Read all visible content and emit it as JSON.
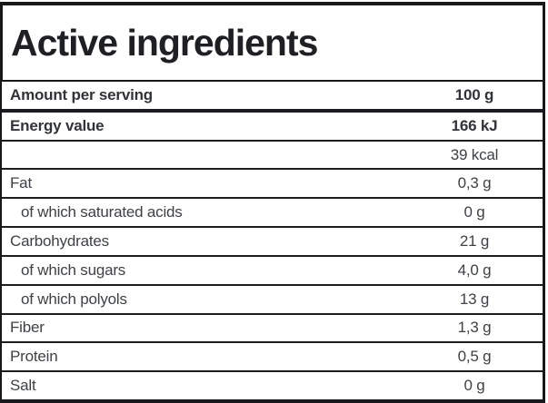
{
  "title": "Active ingredients",
  "table": {
    "rows": [
      {
        "label": "Amount per serving",
        "value": "100 g",
        "bold": true,
        "indent": false
      },
      {
        "label": "Energy value",
        "value": "166 kJ",
        "bold": true,
        "indent": false
      },
      {
        "label": "",
        "value": "39 kcal",
        "bold": false,
        "indent": false
      },
      {
        "label": "Fat",
        "value": "0,3 g",
        "bold": false,
        "indent": false
      },
      {
        "label": "of which saturated acids",
        "value": "0 g",
        "bold": false,
        "indent": true
      },
      {
        "label": "Carbohydrates",
        "value": "21 g",
        "bold": false,
        "indent": false
      },
      {
        "label": "of which sugars",
        "value": "4,0 g",
        "bold": false,
        "indent": true
      },
      {
        "label": "of which polyols",
        "value": "13 g",
        "bold": false,
        "indent": true
      },
      {
        "label": "Fiber",
        "value": "1,3 g",
        "bold": false,
        "indent": false
      },
      {
        "label": "Protein",
        "value": "0,5 g",
        "bold": false,
        "indent": false
      },
      {
        "label": "Salt",
        "value": "0 g",
        "bold": false,
        "indent": false
      }
    ]
  },
  "colors": {
    "border": "#17181a",
    "title_text": "#1f2024",
    "bold_row_text": "#313338",
    "row_text": "#3e4146",
    "background": "#ffffff"
  }
}
